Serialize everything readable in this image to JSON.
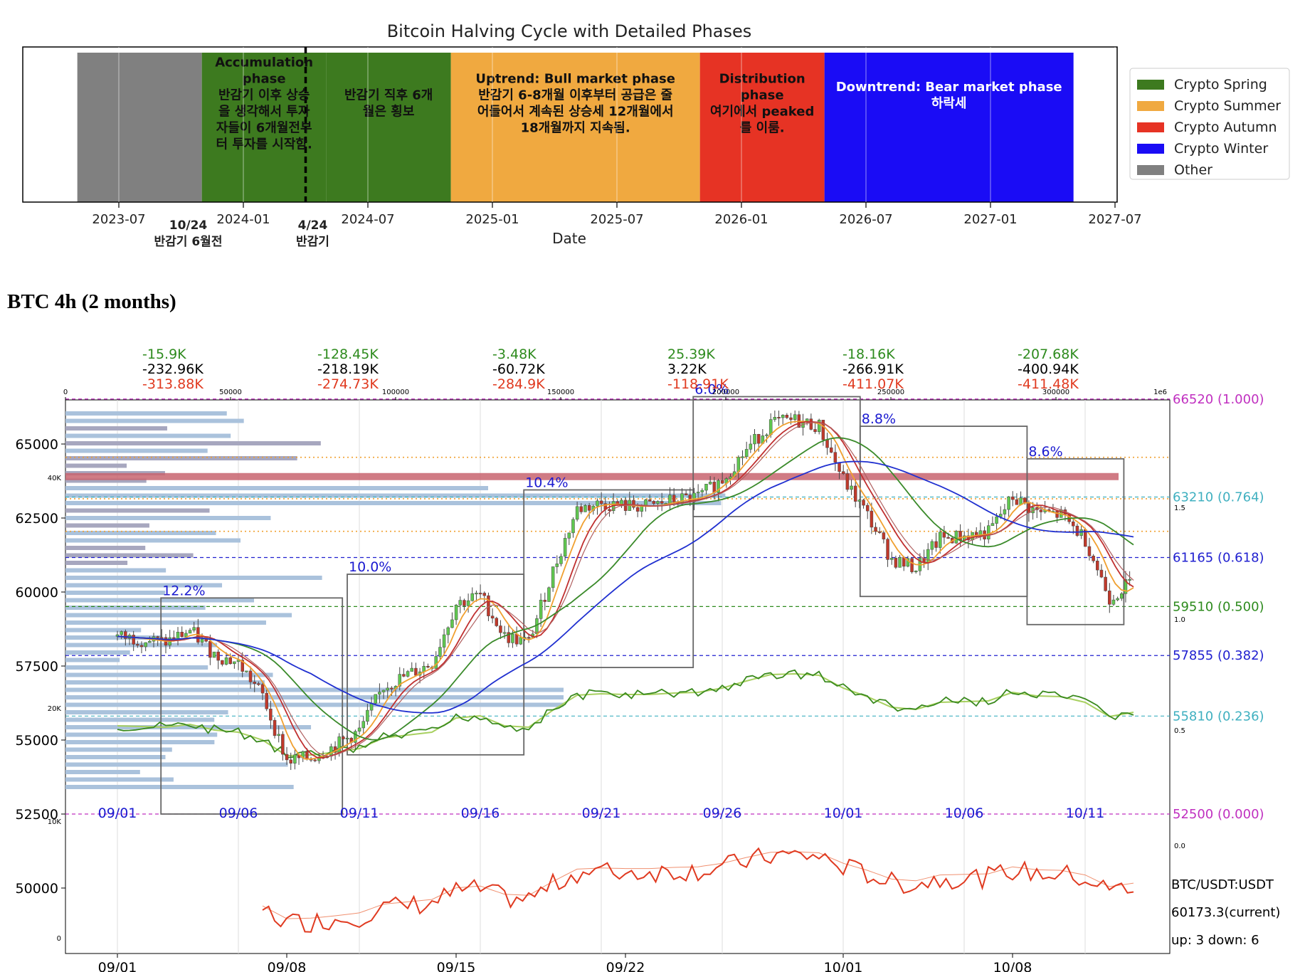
{
  "halving_chart": {
    "title": "Bitcoin Halving Cycle with Detailed Phases",
    "xlabel": "Date",
    "x_ticks": [
      "2023-07",
      "2024-01",
      "2024-07",
      "2025-01",
      "2025-07",
      "2026-01",
      "2026-07",
      "2027-01",
      "2027-07"
    ],
    "phases": [
      {
        "start": "2023-05",
        "end": "2023-11",
        "color": "#808080",
        "label": ""
      },
      {
        "start": "2023-11",
        "end": "2024-05",
        "color": "#3d7a1f",
        "label": "Accumulation\nphase\n반감기 이후 상승\n을 생각해서 투자\n자들이 6개월전부\n터 투자를 시작함."
      },
      {
        "start": "2024-05",
        "end": "2024-11",
        "color": "#3d7a1f",
        "label": "반감기 직후 6개\n월은 횡보"
      },
      {
        "start": "2024-11",
        "end": "2025-11",
        "color": "#f0a940",
        "label": "Uptrend: Bull market phase\n반감기 6-8개월 이후부터 공급은 줄\n어들어서 계속된 상승세 12개월에서\n18개월까지 지속됨."
      },
      {
        "start": "2025-11",
        "end": "2026-05",
        "color": "#e63324",
        "label": "Distribution\nphase\n여기에서 peaked\n를 이룸."
      },
      {
        "start": "2026-05",
        "end": "2027-05",
        "color": "#1a0cf5",
        "label": "Downtrend: Bear market phase\n\n하락세"
      }
    ],
    "halving_marker": {
      "date": "2024-04"
    },
    "annotations": [
      {
        "at": "2023-10",
        "text": "10/24\n반감기 6월전"
      },
      {
        "at": "2024-04",
        "text": "4/24\n반감기"
      }
    ],
    "legend": [
      {
        "name": "Crypto Spring",
        "color": "#3d7a1f"
      },
      {
        "name": "Crypto Summer",
        "color": "#f0a940"
      },
      {
        "name": "Crypto Autumn",
        "color": "#e63324"
      },
      {
        "name": "Crypto Winter",
        "color": "#1a0cf5"
      },
      {
        "name": "Other",
        "color": "#808080"
      }
    ]
  },
  "section_heading": "BTC 4h (2 months)",
  "btc_chart": {
    "y_ticks": [
      "65000",
      "62500",
      "60000",
      "57500",
      "55000",
      "52500",
      "50000"
    ],
    "y_tick_values": [
      65000,
      62500,
      60000,
      57500,
      55000,
      52500,
      50000
    ],
    "bottom_x_ticks": [
      "09/01",
      "09/08",
      "09/15",
      "09/22",
      "10/01",
      "10/08"
    ],
    "inner_date_labels": [
      "09/01",
      "09/06",
      "09/11",
      "09/16",
      "09/21",
      "09/26",
      "10/01",
      "10/06",
      "10/11"
    ],
    "top_volume_ticks": [
      "0",
      "50000",
      "100000",
      "150000",
      "200000",
      "250000",
      "300000"
    ],
    "top_scale_label": "1e6",
    "left_small_ticks": [
      "40K",
      "20K",
      "10K",
      "0"
    ],
    "right_small_ticks": [
      "1.5",
      "1.0",
      "0.5",
      "0.0"
    ],
    "fib_levels": [
      {
        "label": "66520 (1.000)",
        "price": 66520,
        "color": "#c030c0"
      },
      {
        "label": "63210 (0.764)",
        "price": 63210,
        "color": "#40b0c0"
      },
      {
        "label": "61165 (0.618)",
        "price": 61165,
        "color": "#2020d0"
      },
      {
        "label": "59510 (0.500)",
        "price": 59510,
        "color": "#2e8b1e"
      },
      {
        "label": "57855 (0.382)",
        "price": 57855,
        "color": "#2020d0"
      },
      {
        "label": "55810 (0.236)",
        "price": 55810,
        "color": "#40b0c0"
      },
      {
        "label": "52500 (0.000)",
        "price": 52500,
        "color": "#c030c0"
      }
    ],
    "segments": [
      {
        "green": "-15.9K",
        "black": "-232.96K",
        "red": "-313.88K"
      },
      {
        "green": "-128.45K",
        "black": "-218.19K",
        "red": "-274.73K"
      },
      {
        "green": "-3.48K",
        "black": "-60.72K",
        "red": "-284.9K"
      },
      {
        "green": "25.39K",
        "black": "3.22K",
        "red": "-118.91K"
      },
      {
        "green": "-18.16K",
        "black": "-266.91K",
        "red": "-411.07K"
      },
      {
        "green": "-207.68K",
        "black": "-400.94K",
        "red": "-411.48K"
      }
    ],
    "boxes": [
      {
        "pct": "12.2%",
        "d0": 1.8,
        "d1": 9.3,
        "lo": 52500,
        "hi": 59800
      },
      {
        "pct": "10.0%",
        "d0": 9.5,
        "d1": 16.8,
        "lo": 54500,
        "hi": 60600
      },
      {
        "pct": "10.4%",
        "d0": 16.8,
        "d1": 23.8,
        "lo": 57450,
        "hi": 63450
      },
      {
        "pct": "6.0%",
        "d0": 23.8,
        "d1": 30.7,
        "lo": 62550,
        "hi": 66600
      },
      {
        "pct": "8.8%",
        "d0": 30.7,
        "d1": 37.6,
        "lo": 59850,
        "hi": 65600
      },
      {
        "pct": "8.6%",
        "d0": 37.6,
        "d1": 41.6,
        "lo": 58900,
        "hi": 64500
      }
    ],
    "price_path": [
      [
        0,
        58500
      ],
      [
        1,
        58400
      ],
      [
        2,
        58300
      ],
      [
        3,
        58700
      ],
      [
        4,
        57900
      ],
      [
        5,
        57600
      ],
      [
        6,
        56500
      ],
      [
        7,
        54300
      ],
      [
        8,
        54400
      ],
      [
        9,
        54800
      ],
      [
        10,
        55300
      ],
      [
        11,
        56800
      ],
      [
        12,
        57200
      ],
      [
        13,
        57600
      ],
      [
        14,
        59600
      ],
      [
        15,
        59900
      ],
      [
        16,
        58500
      ],
      [
        17,
        58300
      ],
      [
        18,
        60700
      ],
      [
        19,
        62800
      ],
      [
        20,
        63000
      ],
      [
        21,
        62900
      ],
      [
        22,
        62900
      ],
      [
        23,
        63100
      ],
      [
        24,
        63200
      ],
      [
        25,
        63800
      ],
      [
        26,
        64800
      ],
      [
        27,
        65700
      ],
      [
        28,
        65800
      ],
      [
        29,
        65600
      ],
      [
        30,
        63800
      ],
      [
        31,
        62600
      ],
      [
        32,
        61100
      ],
      [
        33,
        60800
      ],
      [
        34,
        61800
      ],
      [
        35,
        61900
      ],
      [
        36,
        62000
      ],
      [
        37,
        63200
      ],
      [
        38,
        62700
      ],
      [
        39,
        62600
      ],
      [
        40,
        61800
      ],
      [
        41,
        59800
      ],
      [
        42,
        60400
      ]
    ],
    "current_label": "BTC/USDT:USDT",
    "current_price": "60173.3(current)",
    "up_down": "up: 3 down: 6"
  }
}
